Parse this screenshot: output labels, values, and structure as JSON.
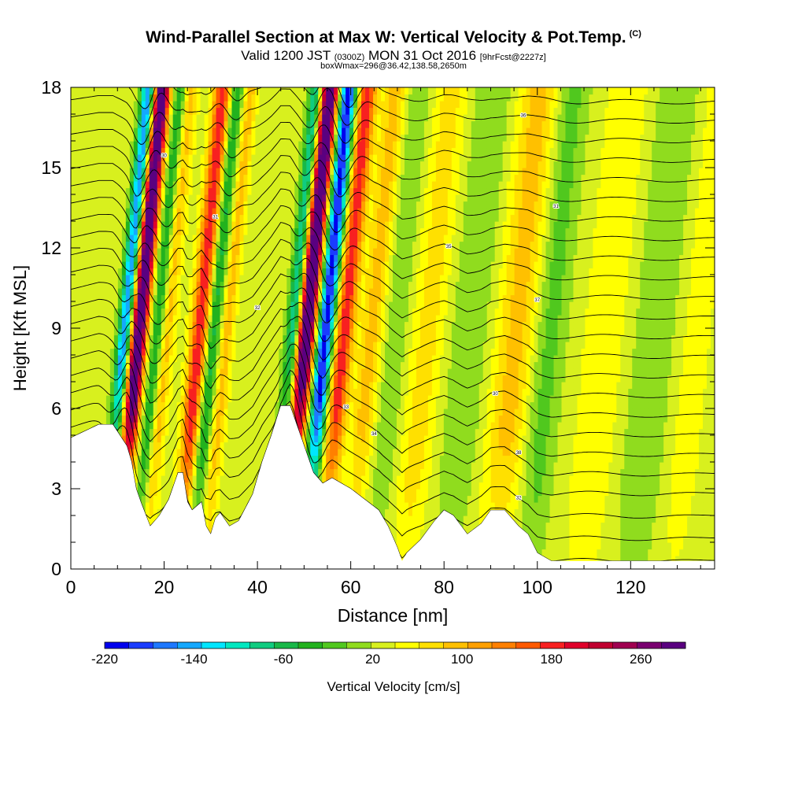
{
  "header": {
    "title": "Wind-Parallel Section at Max W: Vertical Velocity & Pot.Temp.",
    "title_tag": "(C)",
    "subtitle_a": "Valid 1200 JST",
    "subtitle_b": "(0300Z)",
    "subtitle_c": "MON 31 Oct 2016",
    "subtitle_d": "[9hrFcst@2227z]",
    "subtitle2": "boxWmax=296@36.42,138.58,2650m"
  },
  "chart_data": {
    "type": "heatmap",
    "xlabel": "Distance [nm]",
    "ylabel": "Height [Kft MSL]",
    "xlim": [
      0,
      138
    ],
    "ylim": [
      0,
      18
    ],
    "x_ticks": [
      0,
      20,
      40,
      60,
      80,
      100,
      120
    ],
    "y_ticks": [
      0,
      3,
      6,
      9,
      12,
      15,
      18
    ],
    "colorbar": {
      "title": "Vertical Velocity [cm/s]",
      "ticks": [
        -220,
        -140,
        -60,
        20,
        100,
        180,
        260
      ],
      "range": [
        -220,
        300
      ],
      "step": 20,
      "colors": [
        "#0000ee",
        "#1a3cff",
        "#1e78ff",
        "#14a8ff",
        "#00e6ff",
        "#00e8c0",
        "#10cc80",
        "#18b848",
        "#22b21e",
        "#50c81e",
        "#90dc1e",
        "#d8f01e",
        "#ffff00",
        "#ffe000",
        "#ffc000",
        "#ffa000",
        "#ff8000",
        "#ff5a00",
        "#f82020",
        "#e0002a",
        "#c00030",
        "#a00050",
        "#7a0070",
        "#5a0080"
      ]
    },
    "terrain_profile": {
      "x": [
        0,
        6,
        9,
        12,
        13,
        14,
        15,
        17,
        19,
        21,
        23,
        24,
        25,
        26,
        28,
        29,
        30,
        31,
        32,
        34,
        36,
        39,
        41,
        43,
        45,
        47,
        48,
        50,
        52,
        54,
        56,
        60,
        63,
        66,
        68,
        70,
        71,
        72,
        75,
        78,
        80,
        82,
        85,
        88,
        90,
        93,
        96,
        98,
        100,
        103,
        106,
        110,
        115,
        120,
        125,
        130,
        135,
        138
      ],
      "y": [
        4.9,
        5.4,
        5.4,
        4.6,
        4.0,
        3.0,
        2.5,
        1.6,
        2.0,
        2.6,
        3.6,
        3.6,
        2.5,
        2.2,
        2.5,
        1.6,
        1.3,
        1.9,
        2.1,
        1.6,
        1.8,
        2.8,
        4.0,
        5.0,
        6.1,
        6.1,
        5.6,
        4.6,
        3.6,
        3.2,
        3.4,
        3.0,
        2.6,
        2.2,
        1.6,
        0.8,
        0.3,
        0.6,
        1.1,
        1.8,
        2.2,
        2.0,
        1.3,
        1.7,
        2.2,
        2.2,
        1.6,
        1.3,
        0.6,
        0.3,
        0.3,
        0.3,
        0.3,
        0.3,
        0.3,
        0.3,
        0.3,
        0.3
      ]
    },
    "base_w": 10,
    "features": [
      {
        "x": 13,
        "peak_w": 280,
        "width": 1.2
      },
      {
        "x": 10,
        "peak_w": -180,
        "width": 1.0
      },
      {
        "x": 17,
        "peak_w": -80,
        "width": 1.0
      },
      {
        "x": 19,
        "peak_w": 60,
        "width": 1.2
      },
      {
        "x": 26,
        "peak_w": 150,
        "width": 1.3
      },
      {
        "x": 29,
        "peak_w": -80,
        "width": 1.0
      },
      {
        "x": 32,
        "peak_w": 60,
        "width": 1.0
      },
      {
        "x": 49,
        "peak_w": 296,
        "width": 1.3
      },
      {
        "x": 46,
        "peak_w": -120,
        "width": 1.0
      },
      {
        "x": 53,
        "peak_w": -220,
        "width": 1.3
      },
      {
        "x": 57,
        "peak_w": 150,
        "width": 1.4
      },
      {
        "x": 63,
        "peak_w": 60,
        "width": 1.8
      },
      {
        "x": 68,
        "peak_w": -30,
        "width": 2.0
      },
      {
        "x": 75,
        "peak_w": 40,
        "width": 2.5
      },
      {
        "x": 84,
        "peak_w": -30,
        "width": 3.0
      },
      {
        "x": 94,
        "peak_w": 60,
        "width": 3.0
      },
      {
        "x": 101,
        "peak_w": -40,
        "width": 2.5
      },
      {
        "x": 113,
        "peak_w": 30,
        "width": 3.0
      },
      {
        "x": 124,
        "peak_w": -30,
        "width": 3.5
      },
      {
        "x": 132,
        "peak_w": 20,
        "width": 3.0
      }
    ],
    "isentropes": {
      "levels_kft": [
        1.2,
        2.0,
        2.8,
        3.6,
        4.3,
        5.0,
        5.7,
        6.4,
        7.1,
        7.8,
        8.5,
        9.2,
        9.9,
        10.6,
        11.3,
        12.0,
        12.7,
        13.4,
        14.1,
        14.8,
        15.5,
        16.2,
        16.9,
        17.6
      ],
      "label_values": [
        30,
        31,
        32,
        33,
        34,
        35,
        36,
        37,
        38
      ]
    }
  }
}
